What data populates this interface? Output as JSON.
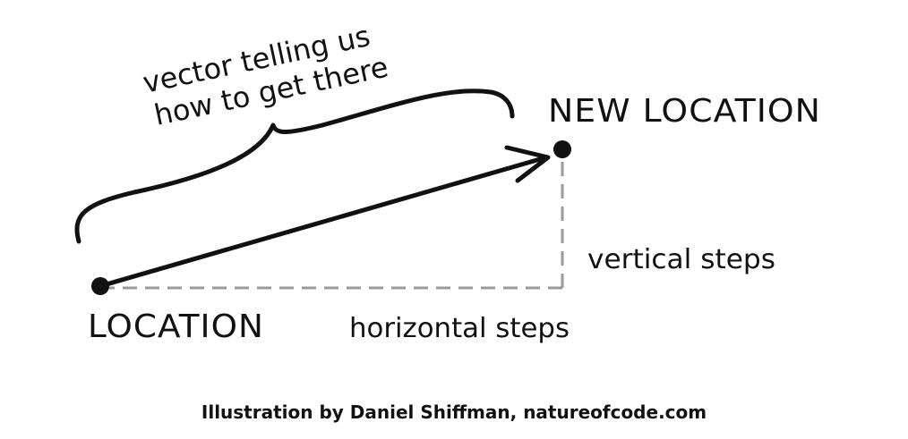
{
  "labels": {
    "brace_line1": "vector telling us",
    "brace_line2": "how to get there",
    "new_location": "NEW LOCATION",
    "location": "LOCATION",
    "vertical": "vertical steps",
    "horizontal": "horizontal steps"
  },
  "credit": "Illustration by Daniel Shiffman, natureofcode.com",
  "colors": {
    "ink": "#111111",
    "dashed": "#9a9a9a",
    "background": "#ffffff"
  }
}
